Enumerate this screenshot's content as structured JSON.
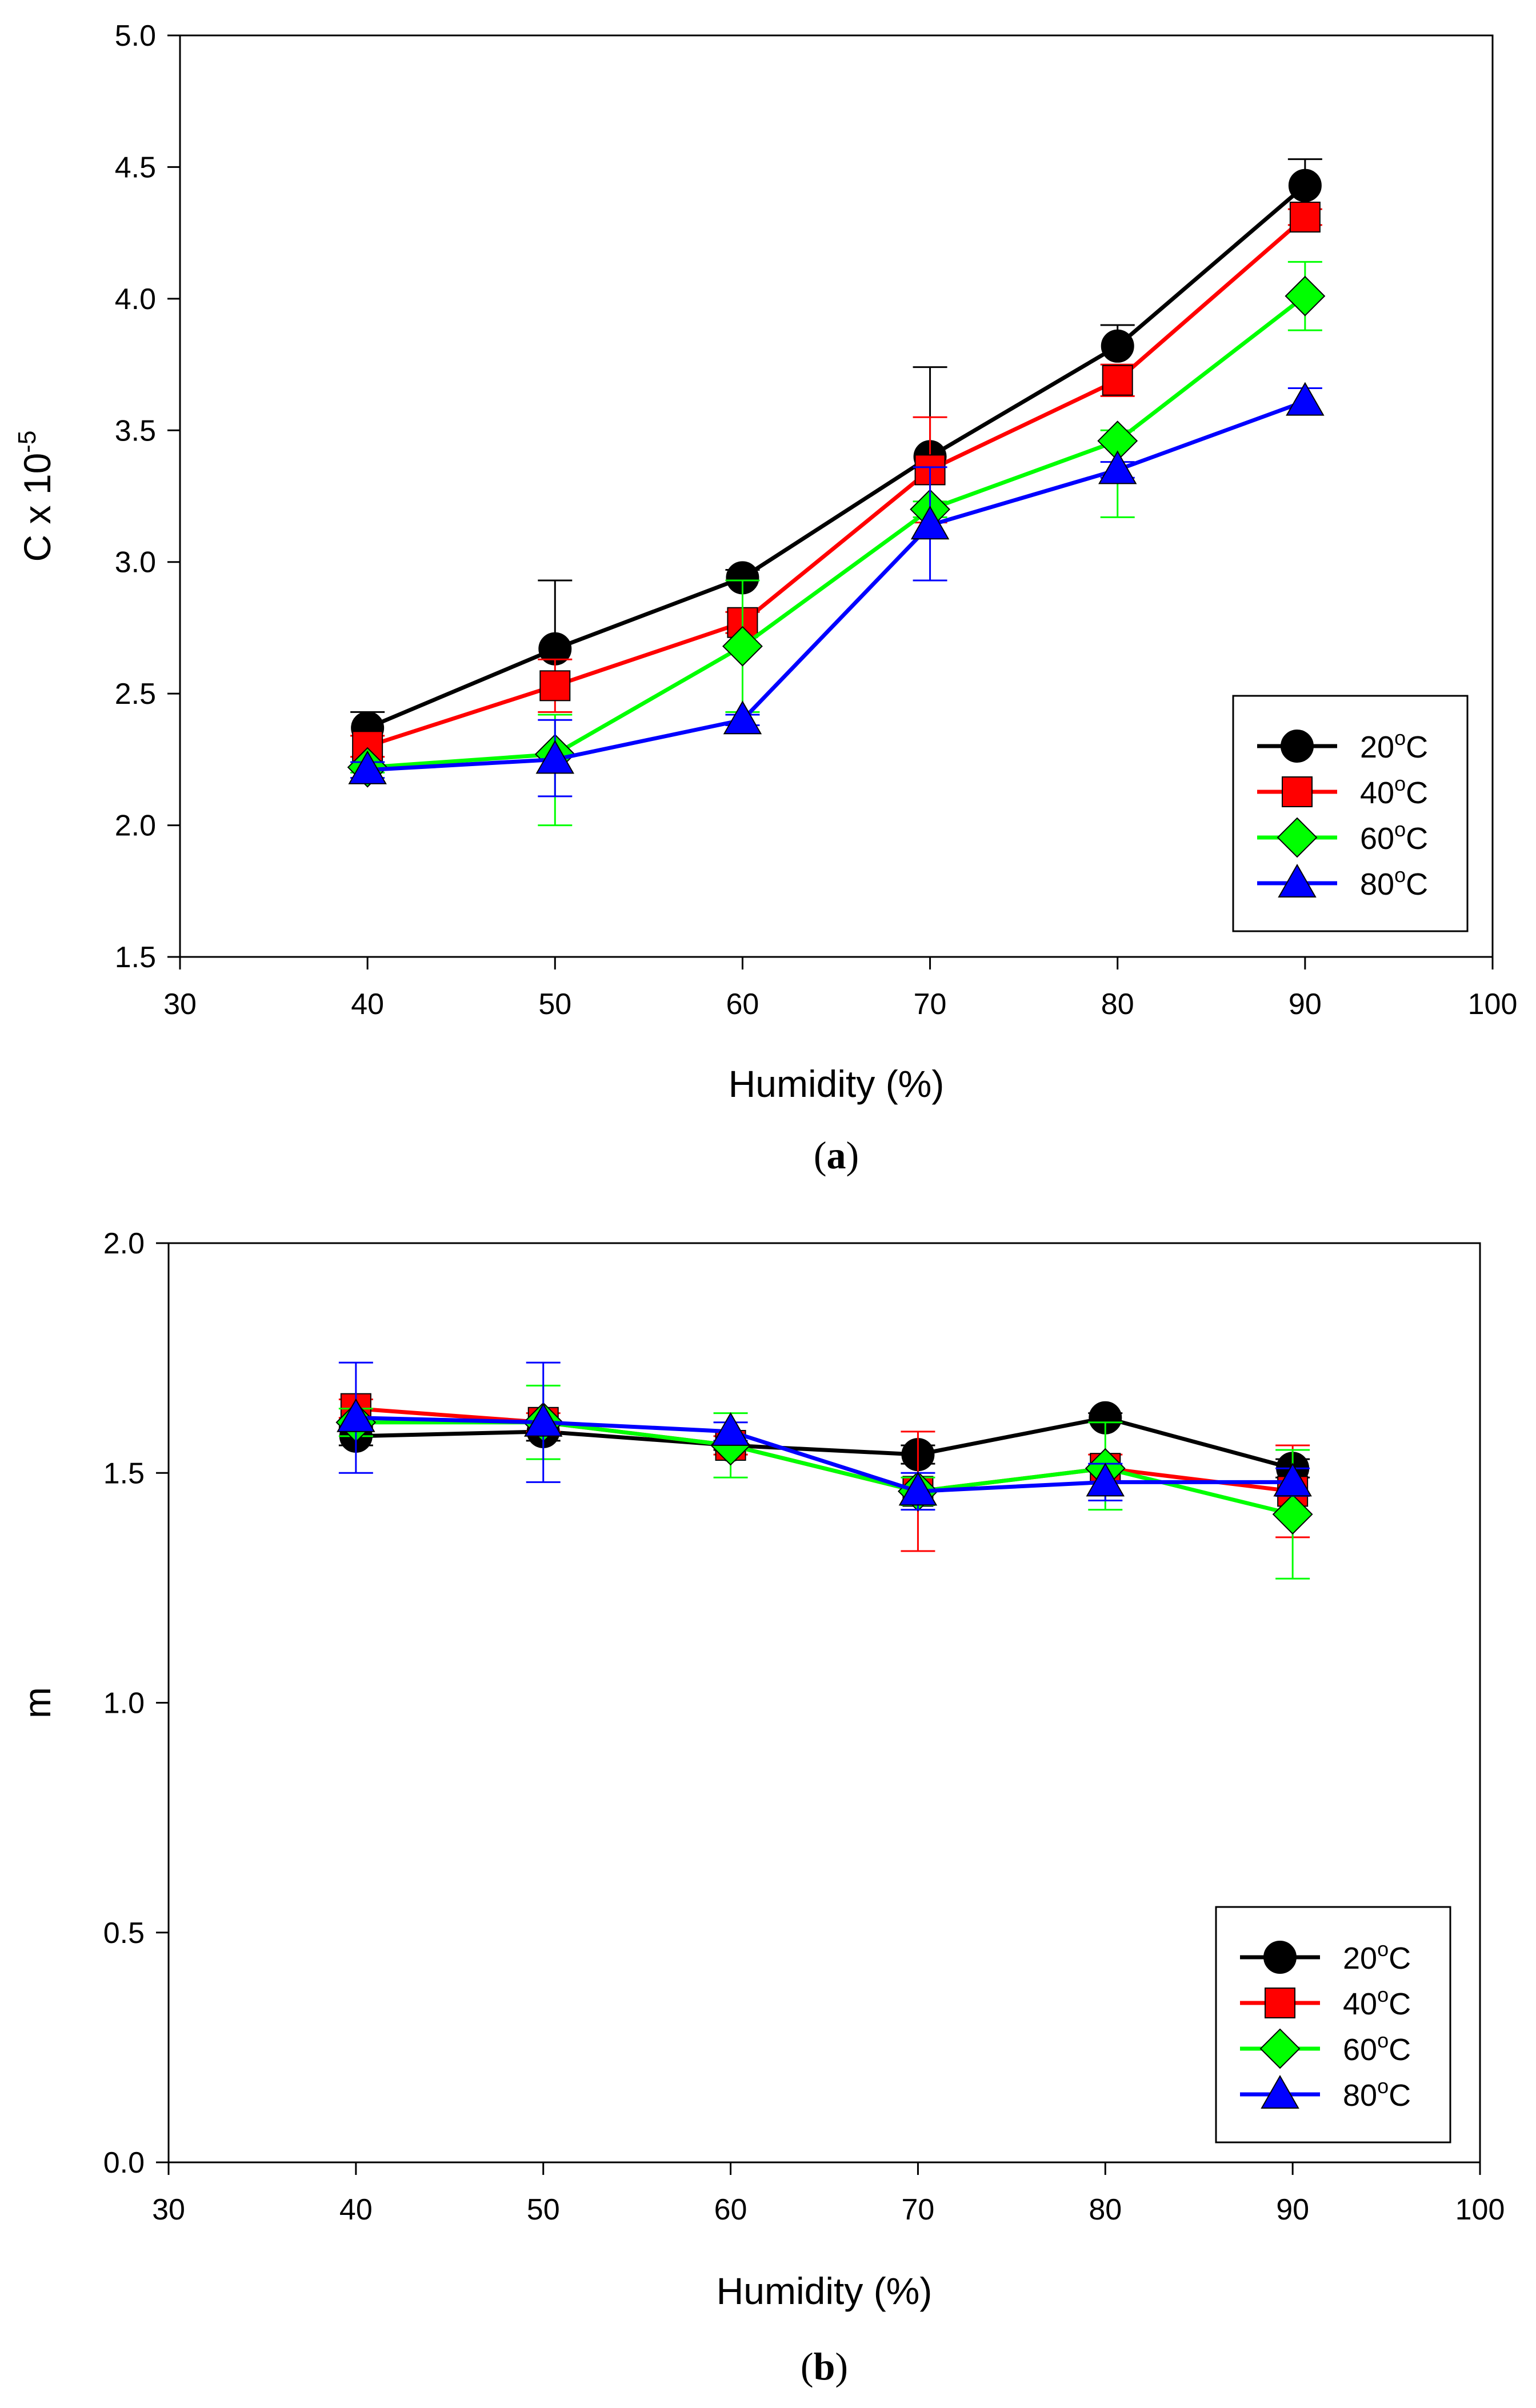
{
  "chart_data": [
    {
      "type": "line",
      "panel_label": "a",
      "title": "",
      "xlabel": "Humidity (%)",
      "ylabel": "C x 10",
      "ylabel_exponent": "-5",
      "xlim": [
        30,
        100
      ],
      "ylim": [
        1.5,
        5.0
      ],
      "xticks": [
        30,
        40,
        50,
        60,
        70,
        80,
        90,
        100
      ],
      "yticks": [
        1.5,
        2.0,
        2.5,
        3.0,
        3.5,
        4.0,
        4.5,
        5.0
      ],
      "tick_decimals": 1,
      "grid": false,
      "legend_position": "bottom-right",
      "x": [
        40,
        50,
        60,
        70,
        80,
        90
      ],
      "series": [
        {
          "name": "20",
          "unit": "C",
          "color": "#000000",
          "marker": "circle",
          "values": [
            2.37,
            2.67,
            2.94,
            3.4,
            3.82,
            4.43
          ],
          "err_up": [
            0.06,
            0.26,
            0.03,
            0.34,
            0.08,
            0.1
          ],
          "err_down": [
            0.0,
            0.0,
            0.0,
            0.0,
            0.0,
            0.0
          ]
        },
        {
          "name": "40",
          "unit": "C",
          "color": "#ff0000",
          "marker": "square",
          "values": [
            2.3,
            2.53,
            2.77,
            3.35,
            3.69,
            4.31
          ],
          "err_up": [
            0.04,
            0.1,
            0.04,
            0.2,
            0.06,
            0.03
          ],
          "err_down": [
            0.04,
            0.1,
            0.04,
            0.2,
            0.06,
            0.03
          ]
        },
        {
          "name": "60",
          "unit": "C",
          "color": "#00ff00",
          "marker": "diamond",
          "values": [
            2.22,
            2.27,
            2.68,
            3.2,
            3.46,
            4.01
          ],
          "err_up": [
            0.02,
            0.15,
            0.25,
            0.03,
            0.04,
            0.13
          ],
          "err_down": [
            0.02,
            0.27,
            0.25,
            0.03,
            0.29,
            0.13
          ]
        },
        {
          "name": "80",
          "unit": "C",
          "color": "#0000ff",
          "marker": "triangle",
          "values": [
            2.21,
            2.25,
            2.4,
            3.14,
            3.35,
            3.61
          ],
          "err_up": [
            0.03,
            0.15,
            0.02,
            0.22,
            0.03,
            0.05
          ],
          "err_down": [
            0.03,
            0.14,
            0.02,
            0.21,
            0.03,
            0.05
          ]
        }
      ]
    },
    {
      "type": "line",
      "panel_label": "b",
      "title": "",
      "xlabel": "Humidity (%)",
      "ylabel": "m",
      "ylabel_exponent": "",
      "xlim": [
        30,
        100
      ],
      "ylim": [
        0.0,
        2.0
      ],
      "xticks": [
        30,
        40,
        50,
        60,
        70,
        80,
        90,
        100
      ],
      "yticks": [
        0.0,
        0.5,
        1.0,
        1.5,
        2.0
      ],
      "tick_decimals": 1,
      "grid": false,
      "legend_position": "bottom-right",
      "x": [
        40,
        50,
        60,
        70,
        80,
        90
      ],
      "series": [
        {
          "name": "20",
          "unit": "C",
          "color": "#000000",
          "marker": "circle",
          "values": [
            1.58,
            1.59,
            1.56,
            1.54,
            1.62,
            1.51
          ],
          "err_up": [
            0.02,
            0.02,
            0.01,
            0.02,
            0.01,
            0.02
          ],
          "err_down": [
            0.02,
            0.02,
            0.01,
            0.02,
            0.01,
            0.02
          ]
        },
        {
          "name": "40",
          "unit": "C",
          "color": "#ff0000",
          "marker": "square",
          "values": [
            1.64,
            1.61,
            1.56,
            1.46,
            1.51,
            1.46
          ],
          "err_up": [
            0.02,
            0.02,
            0.02,
            0.13,
            0.03,
            0.1
          ],
          "err_down": [
            0.02,
            0.02,
            0.02,
            0.13,
            0.03,
            0.1
          ]
        },
        {
          "name": "60",
          "unit": "C",
          "color": "#00ff00",
          "marker": "diamond",
          "values": [
            1.61,
            1.61,
            1.56,
            1.46,
            1.51,
            1.41
          ],
          "err_up": [
            0.03,
            0.08,
            0.07,
            0.03,
            0.1,
            0.14
          ],
          "err_down": [
            0.03,
            0.08,
            0.07,
            0.03,
            0.09,
            0.14
          ]
        },
        {
          "name": "80",
          "unit": "C",
          "color": "#0000ff",
          "marker": "triangle",
          "values": [
            1.62,
            1.61,
            1.59,
            1.46,
            1.48,
            1.48
          ],
          "err_up": [
            0.12,
            0.13,
            0.02,
            0.04,
            0.04,
            0.03
          ],
          "err_down": [
            0.12,
            0.13,
            0.02,
            0.04,
            0.04,
            0.03
          ]
        }
      ]
    }
  ]
}
